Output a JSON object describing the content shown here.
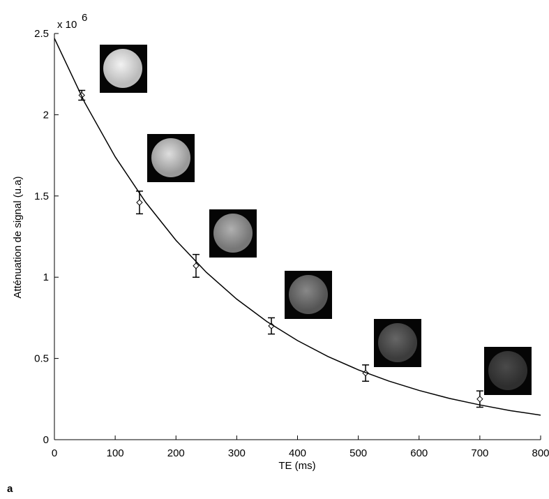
{
  "chart_data": {
    "type": "scatter",
    "panel_label": "a",
    "y_scale_base": "x 10",
    "y_scale_exponent": "6",
    "x_label": "TE (ms)",
    "y_label": "Atténuation de signal (u.a)",
    "xlim": [
      0,
      800
    ],
    "xticks": [
      0,
      100,
      200,
      300,
      400,
      500,
      600,
      700,
      800
    ],
    "ylim": [
      0,
      2.5
    ],
    "yticks": [
      0,
      0.5,
      1,
      1.5,
      2,
      2.5
    ],
    "series": [
      {
        "type": "scatter",
        "color": "#000000",
        "x": [
          45,
          140,
          233,
          357,
          512,
          700
        ],
        "values": [
          2.12,
          1.46,
          1.07,
          0.7,
          0.41,
          0.25
        ],
        "errors": [
          0.03,
          0.07,
          0.07,
          0.05,
          0.05,
          0.05
        ]
      },
      {
        "type": "line",
        "color": "#000000",
        "x": [
          0,
          50,
          100,
          150,
          200,
          250,
          300,
          350,
          400,
          450,
          500,
          550,
          600,
          650,
          700,
          750,
          800
        ],
        "values": [
          2.47,
          2.074,
          1.741,
          1.462,
          1.227,
          1.03,
          0.865,
          0.726,
          0.61,
          0.512,
          0.43,
          0.361,
          0.303,
          0.254,
          0.214,
          0.179,
          0.151
        ]
      }
    ]
  }
}
